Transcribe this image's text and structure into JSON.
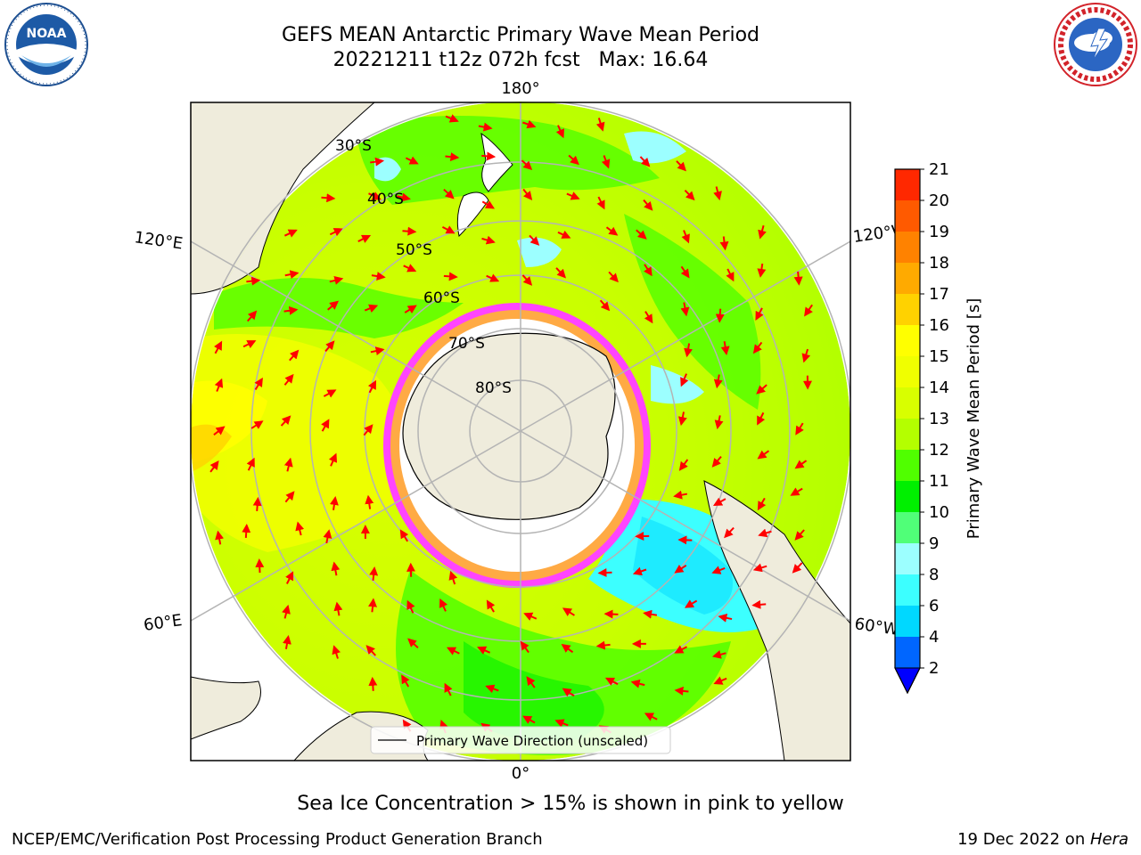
{
  "header": {
    "title_line1": "GEFS MEAN Antarctic Primary Wave Mean Period",
    "title_line2": "20221211 t12z 072h fcst   Max: 16.64"
  },
  "logos": {
    "left": {
      "name": "NOAA",
      "text": "NOAA",
      "ring_text": "NATIONAL OCEANIC AND ATMOSPHERIC ADMINISTRATION · U.S. DEPARTMENT OF COMMERCE"
    },
    "right": {
      "name": "National Weather Service",
      "ring_text": "NATIONAL WEATHER SERVICE"
    }
  },
  "map": {
    "projection": "south polar stereographic",
    "longitude_labels": {
      "top": "180°",
      "bottom": "0°",
      "left_upper": "120°E",
      "left_lower": "60°E",
      "right_upper": "120°W",
      "right_lower": "60°W"
    },
    "latitude_labels": [
      "30°S",
      "40°S",
      "50°S",
      "60°S",
      "70°S",
      "80°S"
    ],
    "legend_label": "Primary Wave Direction (unscaled)",
    "colors": {
      "land": "#efecdc",
      "sea_ice": "#ffffff",
      "arrow": "#ff0000",
      "grid": "#b4b4b4"
    }
  },
  "colorbar": {
    "label": "Primary Wave Mean Period [s]",
    "ticks": [
      "2",
      "4",
      "6",
      "8",
      "9",
      "10",
      "11",
      "12",
      "13",
      "14",
      "15",
      "16",
      "17",
      "18",
      "19",
      "20",
      "21"
    ],
    "colors": [
      "#0066ff",
      "#00d8ff",
      "#3cffff",
      "#9cffff",
      "#50ff78",
      "#00f000",
      "#50ff00",
      "#b4ff00",
      "#d8ff00",
      "#f0ff00",
      "#ffff00",
      "#ffd200",
      "#ffaa00",
      "#ff8200",
      "#ff5a00",
      "#ff2800"
    ],
    "extend_min_color": "#0000ff",
    "extend_max_color": "#ff0000"
  },
  "note": "Sea Ice Concentration > 15% is shown in pink to yellow",
  "footer": {
    "left": "NCEP/EMC/Verification Post Processing Product Generation Branch",
    "right_prefix": "19 Dec 2022 on ",
    "right_host": "Hera"
  }
}
